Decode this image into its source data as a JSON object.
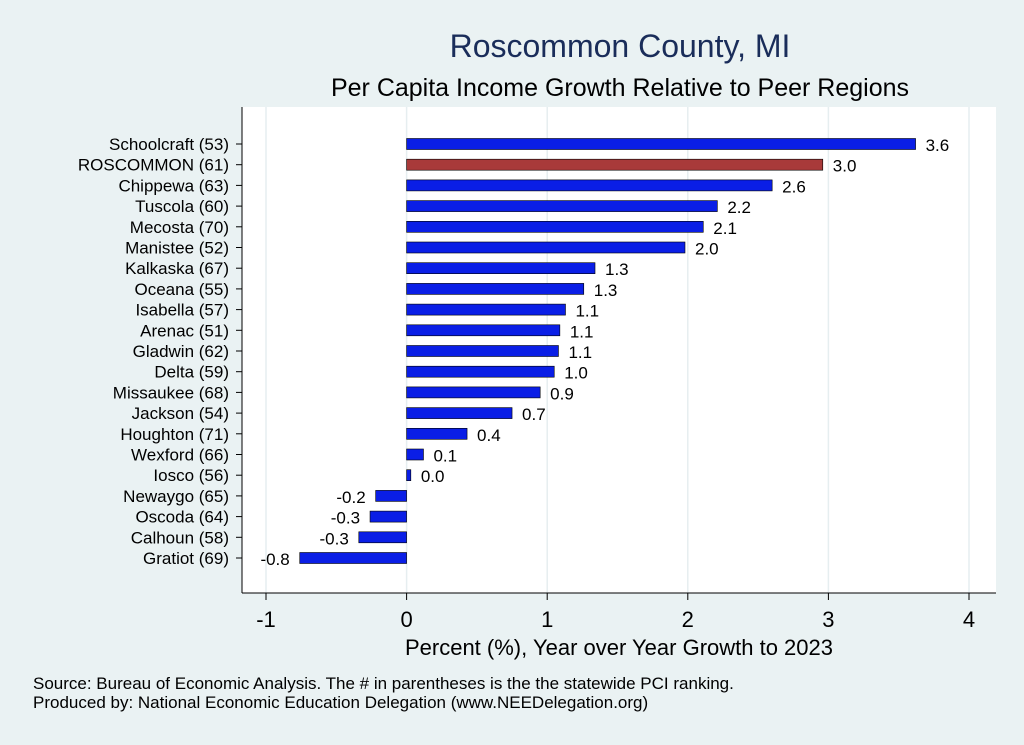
{
  "chart_data": {
    "type": "bar",
    "orientation": "horizontal",
    "title": "Roscommon County, MI",
    "subtitle": "Per Capita Income Growth Relative to Peer Regions",
    "xlabel": "Percent (%), Year over Year Growth to 2023",
    "ylabel": "",
    "xlim": [
      -1,
      4
    ],
    "x_ticks": [
      "-1",
      "0",
      "1",
      "2",
      "3",
      "4"
    ],
    "grid": true,
    "categories": [
      "Schoolcraft (53)",
      "ROSCOMMON (61)",
      "Chippewa (63)",
      "Tuscola (60)",
      "Mecosta (70)",
      "Manistee (52)",
      "Kalkaska (67)",
      "Oceana (55)",
      "Isabella (57)",
      "Arenac (51)",
      "Gladwin (62)",
      "Delta (59)",
      "Missaukee (68)",
      "Jackson (54)",
      "Houghton (71)",
      "Wexford (66)",
      "Iosco (56)",
      "Newaygo (65)",
      "Oscoda (64)",
      "Calhoun (58)",
      "Gratiot (69)"
    ],
    "values": [
      3.62,
      2.96,
      2.6,
      2.21,
      2.11,
      1.98,
      1.34,
      1.26,
      1.13,
      1.09,
      1.08,
      1.05,
      0.95,
      0.75,
      0.43,
      0.12,
      0.03,
      -0.22,
      -0.26,
      -0.34,
      -0.76
    ],
    "value_labels": [
      "3.6",
      "3.0",
      "2.6",
      "2.2",
      "2.1",
      "2.0",
      "1.3",
      "1.3",
      "1.1",
      "1.1",
      "1.1",
      "1.0",
      "0.9",
      "0.7",
      "0.4",
      "0.1",
      "0.0",
      "-0.2",
      "-0.3",
      "-0.3",
      "-0.8"
    ],
    "highlight_index": 1,
    "bar_color": "#0a1ee6",
    "highlight_color": "#a83a3a",
    "source": "Source: Bureau of Economic Analysis. The # in parentheses is the the statewide PCI ranking.",
    "producer": "Produced by: National Economic Education Delegation (www.NEEDelegation.org)"
  }
}
